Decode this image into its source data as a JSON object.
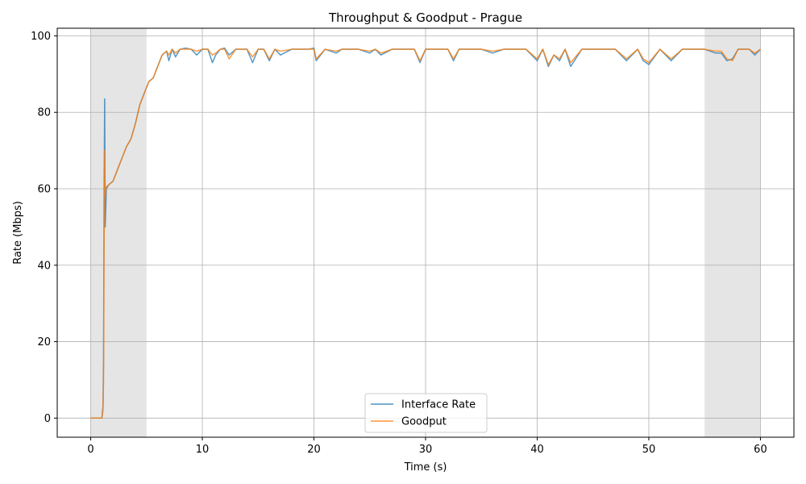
{
  "chart_data": {
    "type": "line",
    "title": "Throughput & Goodput - Prague",
    "xlabel": "Time (s)",
    "ylabel": "Rate (Mbps)",
    "xlim": [
      -3,
      63
    ],
    "ylim": [
      -5,
      102
    ],
    "xticks": [
      0,
      10,
      20,
      30,
      40,
      50,
      60
    ],
    "yticks": [
      0,
      20,
      40,
      60,
      80,
      100
    ],
    "grid": true,
    "legend_position": "lower-center",
    "shaded_regions": [
      {
        "x_start": 0,
        "x_end": 5,
        "color": "#e5e5e5"
      },
      {
        "x_start": 55,
        "x_end": 60,
        "color": "#e5e5e5"
      }
    ],
    "series": [
      {
        "name": "Interface Rate",
        "color": "#1f77b4",
        "x": [
          0,
          0.5,
          1.0,
          1.1,
          1.15,
          1.2,
          1.25,
          1.3,
          1.35,
          1.4,
          1.6,
          2.0,
          2.4,
          2.8,
          3.2,
          3.6,
          4.0,
          4.4,
          4.8,
          5.2,
          5.6,
          6.0,
          6.4,
          6.8,
          7.0,
          7.3,
          7.6,
          8.0,
          8.5,
          9.0,
          9.5,
          10.0,
          10.5,
          10.9,
          11.2,
          11.6,
          12.0,
          12.4,
          13.0,
          14.0,
          14.5,
          15.0,
          15.5,
          16.0,
          16.5,
          17.0,
          18.0,
          19.0,
          19.5,
          20.0,
          20.2,
          21.0,
          22.0,
          22.5,
          23.0,
          24.0,
          25.0,
          25.5,
          26.0,
          27.0,
          28.0,
          29.0,
          29.5,
          30.0,
          31.0,
          32.0,
          32.5,
          33.0,
          34.0,
          35.0,
          36.0,
          37.0,
          38.0,
          39.0,
          40.0,
          40.5,
          41.0,
          41.5,
          42.0,
          42.5,
          43.0,
          44.0,
          45.0,
          46.0,
          47.0,
          48.0,
          49.0,
          49.5,
          50.0,
          51.0,
          52.0,
          53.0,
          54.0,
          55.0,
          56.0,
          56.5,
          57.0,
          57.5,
          58.0,
          59.0,
          59.5,
          60.0
        ],
        "values": [
          0,
          0,
          0,
          3,
          15,
          60,
          83.5,
          50,
          55,
          60,
          61,
          62,
          65,
          68,
          71,
          73,
          77,
          82,
          85,
          88,
          89,
          92,
          95,
          96,
          93.5,
          96.5,
          94.5,
          96.5,
          96.8,
          96.5,
          95,
          96.5,
          96.5,
          93,
          95,
          96.5,
          96.8,
          95,
          96.5,
          96.5,
          93,
          96.5,
          96.5,
          93.5,
          96.5,
          95,
          96.5,
          96.5,
          96.5,
          96.8,
          93.5,
          96.5,
          95.5,
          96.5,
          96.5,
          96.5,
          95.5,
          96.5,
          95,
          96.5,
          96.5,
          96.5,
          93,
          96.5,
          96.5,
          96.5,
          93.5,
          96.5,
          96.5,
          96.5,
          95.5,
          96.5,
          96.5,
          96.5,
          93.5,
          96.5,
          92,
          95,
          93.5,
          96.5,
          92,
          96.5,
          96.5,
          96.5,
          96.5,
          93.5,
          96.5,
          93.5,
          92.5,
          96.5,
          93.5,
          96.5,
          96.5,
          96.5,
          95.5,
          95.5,
          93.5,
          94,
          96.5,
          96.5,
          95,
          96.5
        ]
      },
      {
        "name": "Goodput",
        "color": "#ff7f0e",
        "x": [
          0,
          0.5,
          1.0,
          1.1,
          1.15,
          1.2,
          1.25,
          1.3,
          1.35,
          1.4,
          1.6,
          2.0,
          2.4,
          2.8,
          3.2,
          3.6,
          4.0,
          4.4,
          4.8,
          5.2,
          5.6,
          6.0,
          6.4,
          6.8,
          7.0,
          7.3,
          7.6,
          8.0,
          8.5,
          9.0,
          9.5,
          10.0,
          10.5,
          10.9,
          11.2,
          11.6,
          12.0,
          12.4,
          13.0,
          14.0,
          14.5,
          15.0,
          15.5,
          16.0,
          16.5,
          17.0,
          18.0,
          19.0,
          19.5,
          20.0,
          20.2,
          21.0,
          22.0,
          22.5,
          23.0,
          24.0,
          25.0,
          25.5,
          26.0,
          27.0,
          28.0,
          29.0,
          29.5,
          30.0,
          31.0,
          32.0,
          32.5,
          33.0,
          34.0,
          35.0,
          36.0,
          37.0,
          38.0,
          39.0,
          40.0,
          40.5,
          41.0,
          41.5,
          42.0,
          42.5,
          43.0,
          44.0,
          45.0,
          46.0,
          47.0,
          48.0,
          49.0,
          49.5,
          50.0,
          51.0,
          52.0,
          53.0,
          54.0,
          55.0,
          56.0,
          56.5,
          57.0,
          57.5,
          58.0,
          59.0,
          59.5,
          60.0
        ],
        "values": [
          0,
          0,
          0,
          2,
          10,
          45,
          70,
          58,
          60,
          60.5,
          61,
          62,
          65,
          68,
          71,
          73,
          77,
          82,
          85,
          88,
          89,
          92,
          95,
          96,
          95,
          96.5,
          95.5,
          96.5,
          96.5,
          96.5,
          96,
          96.5,
          96.5,
          95,
          95.5,
          96.5,
          96.5,
          94,
          96.5,
          96.5,
          94.5,
          96.5,
          96.5,
          94,
          96.5,
          96,
          96.5,
          96.5,
          96.5,
          96.5,
          94,
          96.5,
          96,
          96.5,
          96.5,
          96.5,
          96,
          96.5,
          95.5,
          96.5,
          96.5,
          96.5,
          93.5,
          96.5,
          96.5,
          96.5,
          94,
          96.5,
          96.5,
          96.5,
          96,
          96.5,
          96.5,
          96.5,
          94,
          96.5,
          92.5,
          95,
          94,
          96.5,
          93,
          96.5,
          96.5,
          96.5,
          96.5,
          94,
          96.5,
          94,
          93,
          96.5,
          94,
          96.5,
          96.5,
          96.5,
          96,
          96,
          94,
          93.5,
          96.5,
          96.5,
          95.5,
          96.5
        ]
      }
    ]
  }
}
